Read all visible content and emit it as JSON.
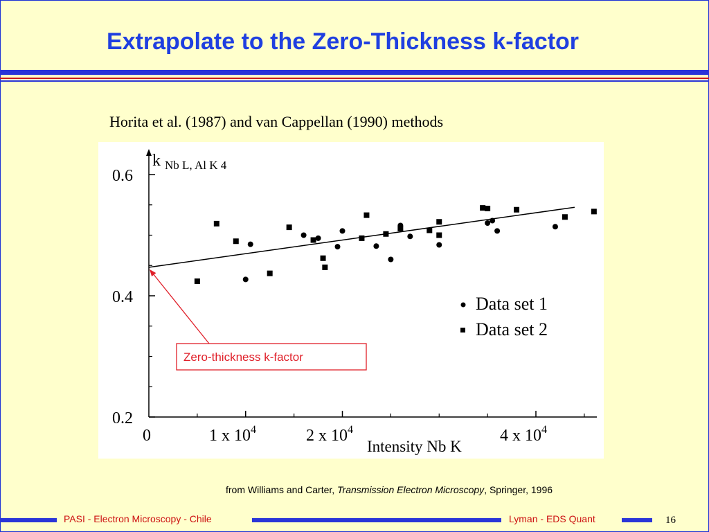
{
  "slide": {
    "title": "Extrapolate to the Zero-Thickness k-factor",
    "subtitle": "Horita et al. (1987) and van Cappellan (1990) methods",
    "source_prefix": "from Williams and Carter, ",
    "source_title": "Transmission Electron Microscopy",
    "source_suffix": ", Springer, 1996",
    "footer_left": "PASI - Electron Microscopy - Chile",
    "footer_right": "Lyman - EDS Quant",
    "page_number": "16",
    "colors": {
      "title": "#1f3fe0",
      "stripe_blue": "#2a35d8",
      "stripe_red": "#cc1b1b",
      "background": "#ffffcc",
      "annotation": "#e0202a"
    }
  },
  "chart_data": {
    "type": "scatter",
    "ylabel_main": "k",
    "ylabel_sub": "Nb L, Al K 4",
    "xlabel": "Intensity Nb K",
    "xlim": [
      0,
      46000
    ],
    "ylim": [
      0.2,
      0.63
    ],
    "yticks": [
      {
        "value": 0.2,
        "label": "0.2"
      },
      {
        "value": 0.4,
        "label": "0.4"
      },
      {
        "value": 0.6,
        "label": "0.6"
      }
    ],
    "yminor": [
      0.25,
      0.3,
      0.35,
      0.45,
      0.5,
      0.55
    ],
    "xticks": [
      {
        "value": 0,
        "base": "0",
        "exp": ""
      },
      {
        "value": 10000,
        "base": "1 x 10",
        "exp": "4"
      },
      {
        "value": 20000,
        "base": "2 x 10",
        "exp": "4"
      },
      {
        "value": 40000,
        "base": "4 x 10",
        "exp": "4"
      }
    ],
    "xminor": [
      5000,
      15000,
      25000,
      30000,
      35000,
      45000
    ],
    "fit_line": [
      [
        0,
        0.447
      ],
      [
        44000,
        0.546
      ]
    ],
    "series": [
      {
        "name": "Data set 1",
        "marker": "circle",
        "points": [
          [
            10000,
            0.427
          ],
          [
            10500,
            0.485
          ],
          [
            16000,
            0.5
          ],
          [
            17500,
            0.495
          ],
          [
            19500,
            0.481
          ],
          [
            20000,
            0.507
          ],
          [
            23500,
            0.482
          ],
          [
            25000,
            0.46
          ],
          [
            26000,
            0.516
          ],
          [
            27000,
            0.498
          ],
          [
            30000,
            0.484
          ],
          [
            35000,
            0.52
          ],
          [
            35500,
            0.524
          ],
          [
            36000,
            0.507
          ],
          [
            42000,
            0.514
          ]
        ]
      },
      {
        "name": "Data set 2",
        "marker": "square",
        "points": [
          [
            5000,
            0.424
          ],
          [
            7000,
            0.519
          ],
          [
            9000,
            0.49
          ],
          [
            12500,
            0.437
          ],
          [
            14500,
            0.513
          ],
          [
            17000,
            0.492
          ],
          [
            18000,
            0.462
          ],
          [
            18200,
            0.447
          ],
          [
            22000,
            0.495
          ],
          [
            22500,
            0.533
          ],
          [
            24500,
            0.502
          ],
          [
            26000,
            0.511
          ],
          [
            29000,
            0.508
          ],
          [
            30000,
            0.522
          ],
          [
            30000,
            0.5
          ],
          [
            34500,
            0.545
          ],
          [
            35000,
            0.544
          ],
          [
            38000,
            0.542
          ],
          [
            43000,
            0.53
          ],
          [
            46000,
            0.539
          ]
        ]
      }
    ],
    "annotation": {
      "text": "Zero-thickness k-factor",
      "target": [
        0,
        0.447
      ]
    },
    "legend_position": "right"
  }
}
